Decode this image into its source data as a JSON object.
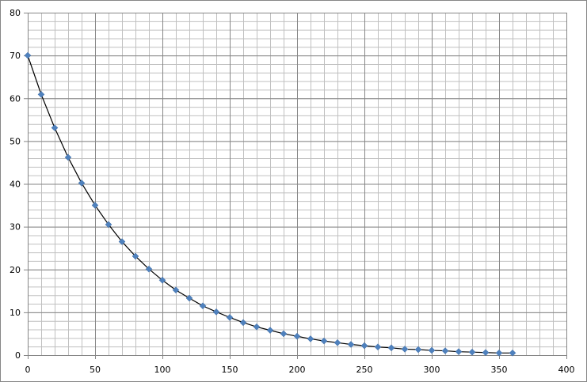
{
  "chart_data": {
    "type": "scatter",
    "title": "",
    "xlabel": "",
    "ylabel": "",
    "xlim": [
      0,
      400
    ],
    "ylim": [
      0,
      80
    ],
    "x_ticks": [
      0,
      50,
      100,
      150,
      200,
      250,
      300,
      350,
      400
    ],
    "y_ticks": [
      0,
      10,
      20,
      30,
      40,
      50,
      60,
      70,
      80
    ],
    "x_minor_step": 10,
    "y_minor_step": 2,
    "grid": true,
    "legend": "none",
    "trendline": "smooth",
    "colors": {
      "marker": "#4f81bd",
      "trendline": "#000000",
      "major_grid": "#868686",
      "minor_grid": "#c0c0c0"
    },
    "series": [
      {
        "x": [
          0,
          10,
          20,
          30,
          40,
          50,
          60,
          70,
          80,
          90,
          100,
          110,
          120,
          130,
          140,
          150,
          160,
          170,
          180,
          190,
          200,
          210,
          220,
          230,
          240,
          250,
          260,
          270,
          280,
          290,
          300,
          310,
          320,
          330,
          340,
          350,
          360
        ],
        "y": [
          70.0,
          60.9,
          53.1,
          46.2,
          40.2,
          35.0,
          30.5,
          26.5,
          23.1,
          20.1,
          17.5,
          15.2,
          13.3,
          11.5,
          10.1,
          8.8,
          7.6,
          6.6,
          5.8,
          5.0,
          4.4,
          3.8,
          3.3,
          2.9,
          2.5,
          2.2,
          1.9,
          1.7,
          1.4,
          1.3,
          1.1,
          1.0,
          0.8,
          0.7,
          0.6,
          0.5,
          0.5
        ]
      }
    ]
  }
}
